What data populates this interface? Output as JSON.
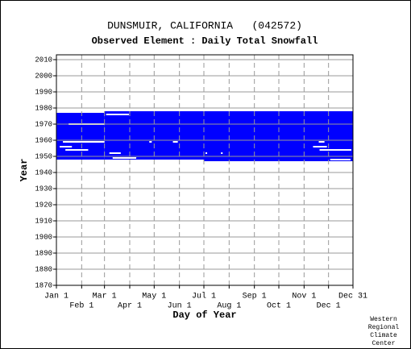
{
  "chart_data": {
    "type": "coverage",
    "title": "DUNSMUIR, CALIFORNIA   (042572)",
    "subtitle": "Observed Element : Daily Total Snowfall",
    "x_label": "Day of Year",
    "y_label": "Year",
    "credit": [
      "Western",
      "Regional",
      "Climate",
      "Center"
    ],
    "color": "#0000ff",
    "xlim": [
      1,
      365
    ],
    "ylim": [
      1870,
      2013
    ],
    "xticks": [
      {
        "value": 1,
        "label": "Jan 1"
      },
      {
        "value": 32,
        "label": "Feb 1"
      },
      {
        "value": 60,
        "label": "Mar 1"
      },
      {
        "value": 91,
        "label": "Apr 1"
      },
      {
        "value": 121,
        "label": "May 1"
      },
      {
        "value": 152,
        "label": "Jun 1"
      },
      {
        "value": 182,
        "label": "Jul 1"
      },
      {
        "value": 213,
        "label": "Aug 1"
      },
      {
        "value": 244,
        "label": "Sep 1"
      },
      {
        "value": 274,
        "label": "Oct 1"
      },
      {
        "value": 305,
        "label": "Nov 1"
      },
      {
        "value": 335,
        "label": "Dec 1"
      },
      {
        "value": 365,
        "label": "Dec 31"
      }
    ],
    "yticks": [
      1870,
      1880,
      1890,
      1900,
      1910,
      1920,
      1930,
      1940,
      1950,
      1960,
      1970,
      1980,
      1990,
      2000,
      2010
    ],
    "grid": true,
    "blocks": [
      {
        "days": [
          1,
          60
        ],
        "years": [
          1948,
          1977
        ]
      },
      {
        "days": [
          60,
          182
        ],
        "years": [
          1948,
          1978
        ]
      },
      {
        "days": [
          182,
          365
        ],
        "years": [
          1947,
          1978
        ]
      }
    ],
    "gaps": [
      {
        "year": 1970,
        "days": [
          16,
          60
        ]
      },
      {
        "year": 1976,
        "days": [
          62,
          90
        ]
      },
      {
        "year": 1959,
        "days": [
          9,
          60
        ]
      },
      {
        "year": 1959,
        "days": [
          115,
          118
        ]
      },
      {
        "year": 1959,
        "days": [
          144,
          150
        ]
      },
      {
        "year": 1954,
        "days": [
          324,
          363
        ]
      },
      {
        "year": 1956,
        "days": [
          316,
          333
        ]
      },
      {
        "year": 1959,
        "days": [
          323,
          330
        ]
      },
      {
        "year": 1949,
        "days": [
          70,
          99
        ]
      },
      {
        "year": 1952,
        "days": [
          66,
          80
        ]
      },
      {
        "year": 1948,
        "days": [
          337,
          362
        ]
      },
      {
        "year": 1956,
        "days": [
          5,
          20
        ]
      },
      {
        "year": 1954,
        "days": [
          12,
          40
        ]
      },
      {
        "year": 1952,
        "days": [
          184,
          186
        ]
      },
      {
        "year": 1952,
        "days": [
          203,
          205
        ]
      }
    ]
  }
}
